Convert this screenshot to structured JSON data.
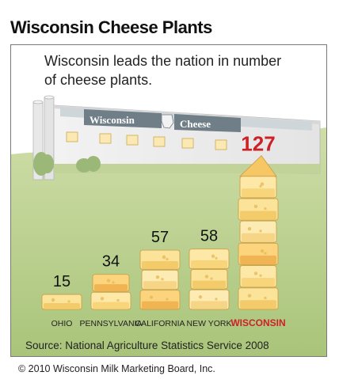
{
  "chart_data": {
    "type": "bar",
    "title": "Wisconsin Cheese Plants",
    "subtitle": "Wisconsin leads the nation in number of cheese plants.",
    "categories": [
      "OHIO",
      "PENNSYLVANIA",
      "CALIFORNIA",
      "NEW YORK",
      "WISCONSIN"
    ],
    "values": [
      15,
      34,
      57,
      58,
      127
    ],
    "highlight_category": "WISCONSIN",
    "highlight_color": "#cc2127",
    "value_color": "#111111",
    "building_sign": [
      "Wisconsin",
      "Cheese"
    ],
    "source": "Source: National Agriculture Statistics Service 2008"
  },
  "copyright": "© 2010 Wisconsin Milk Marketing Board, Inc."
}
